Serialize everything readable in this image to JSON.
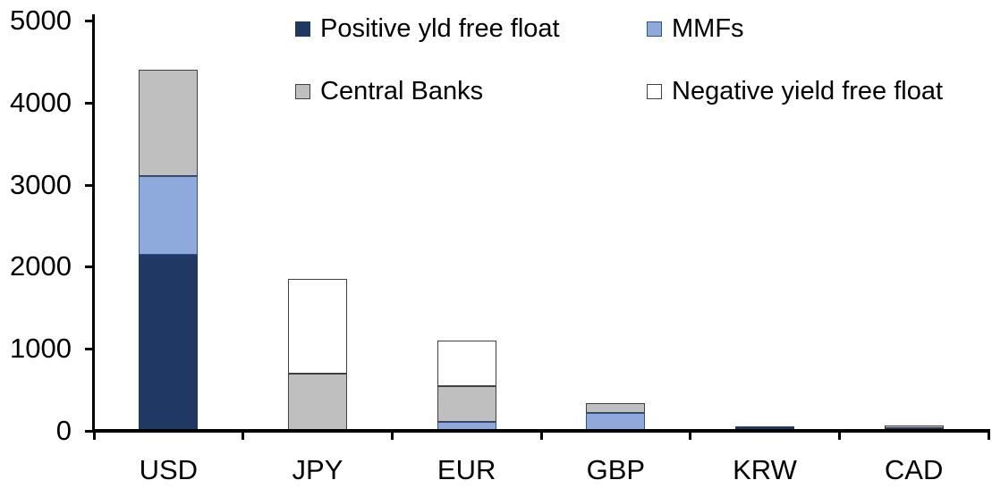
{
  "chart_data": {
    "type": "bar",
    "stacked": true,
    "title": "",
    "xlabel": "",
    "ylabel": "",
    "categories": [
      "USD",
      "JPY",
      "EUR",
      "GBP",
      "KRW",
      "CAD"
    ],
    "series": [
      {
        "name": "Positive yld free float",
        "color": "#1F3864",
        "border_color": "#1F3864",
        "values": [
          2150,
          0,
          0,
          0,
          50,
          30
        ]
      },
      {
        "name": "MMFs",
        "color": "#8EA9DB",
        "border_color": "#2E5496",
        "values": [
          950,
          0,
          110,
          215,
          0,
          0
        ]
      },
      {
        "name": "Central Banks",
        "color": "#BFBFBF",
        "border_color": "#404040",
        "values": [
          1300,
          700,
          430,
          120,
          0,
          30
        ]
      },
      {
        "name": "Negative yield free float",
        "color": "#FFFFFF",
        "border_color": "#404040",
        "values": [
          0,
          1150,
          560,
          0,
          0,
          0
        ]
      }
    ],
    "totals": [
      4400,
      1850,
      1100,
      335,
      50,
      60
    ],
    "ylim": [
      0,
      5000
    ],
    "yticks": [
      0,
      1000,
      2000,
      3000,
      4000,
      5000
    ],
    "ytick_interval": 1000,
    "grid": false,
    "legend_position": "top",
    "legend_columns": 2,
    "axis_color": "#000000",
    "text_color": "#000000",
    "background": "#FFFFFF"
  }
}
